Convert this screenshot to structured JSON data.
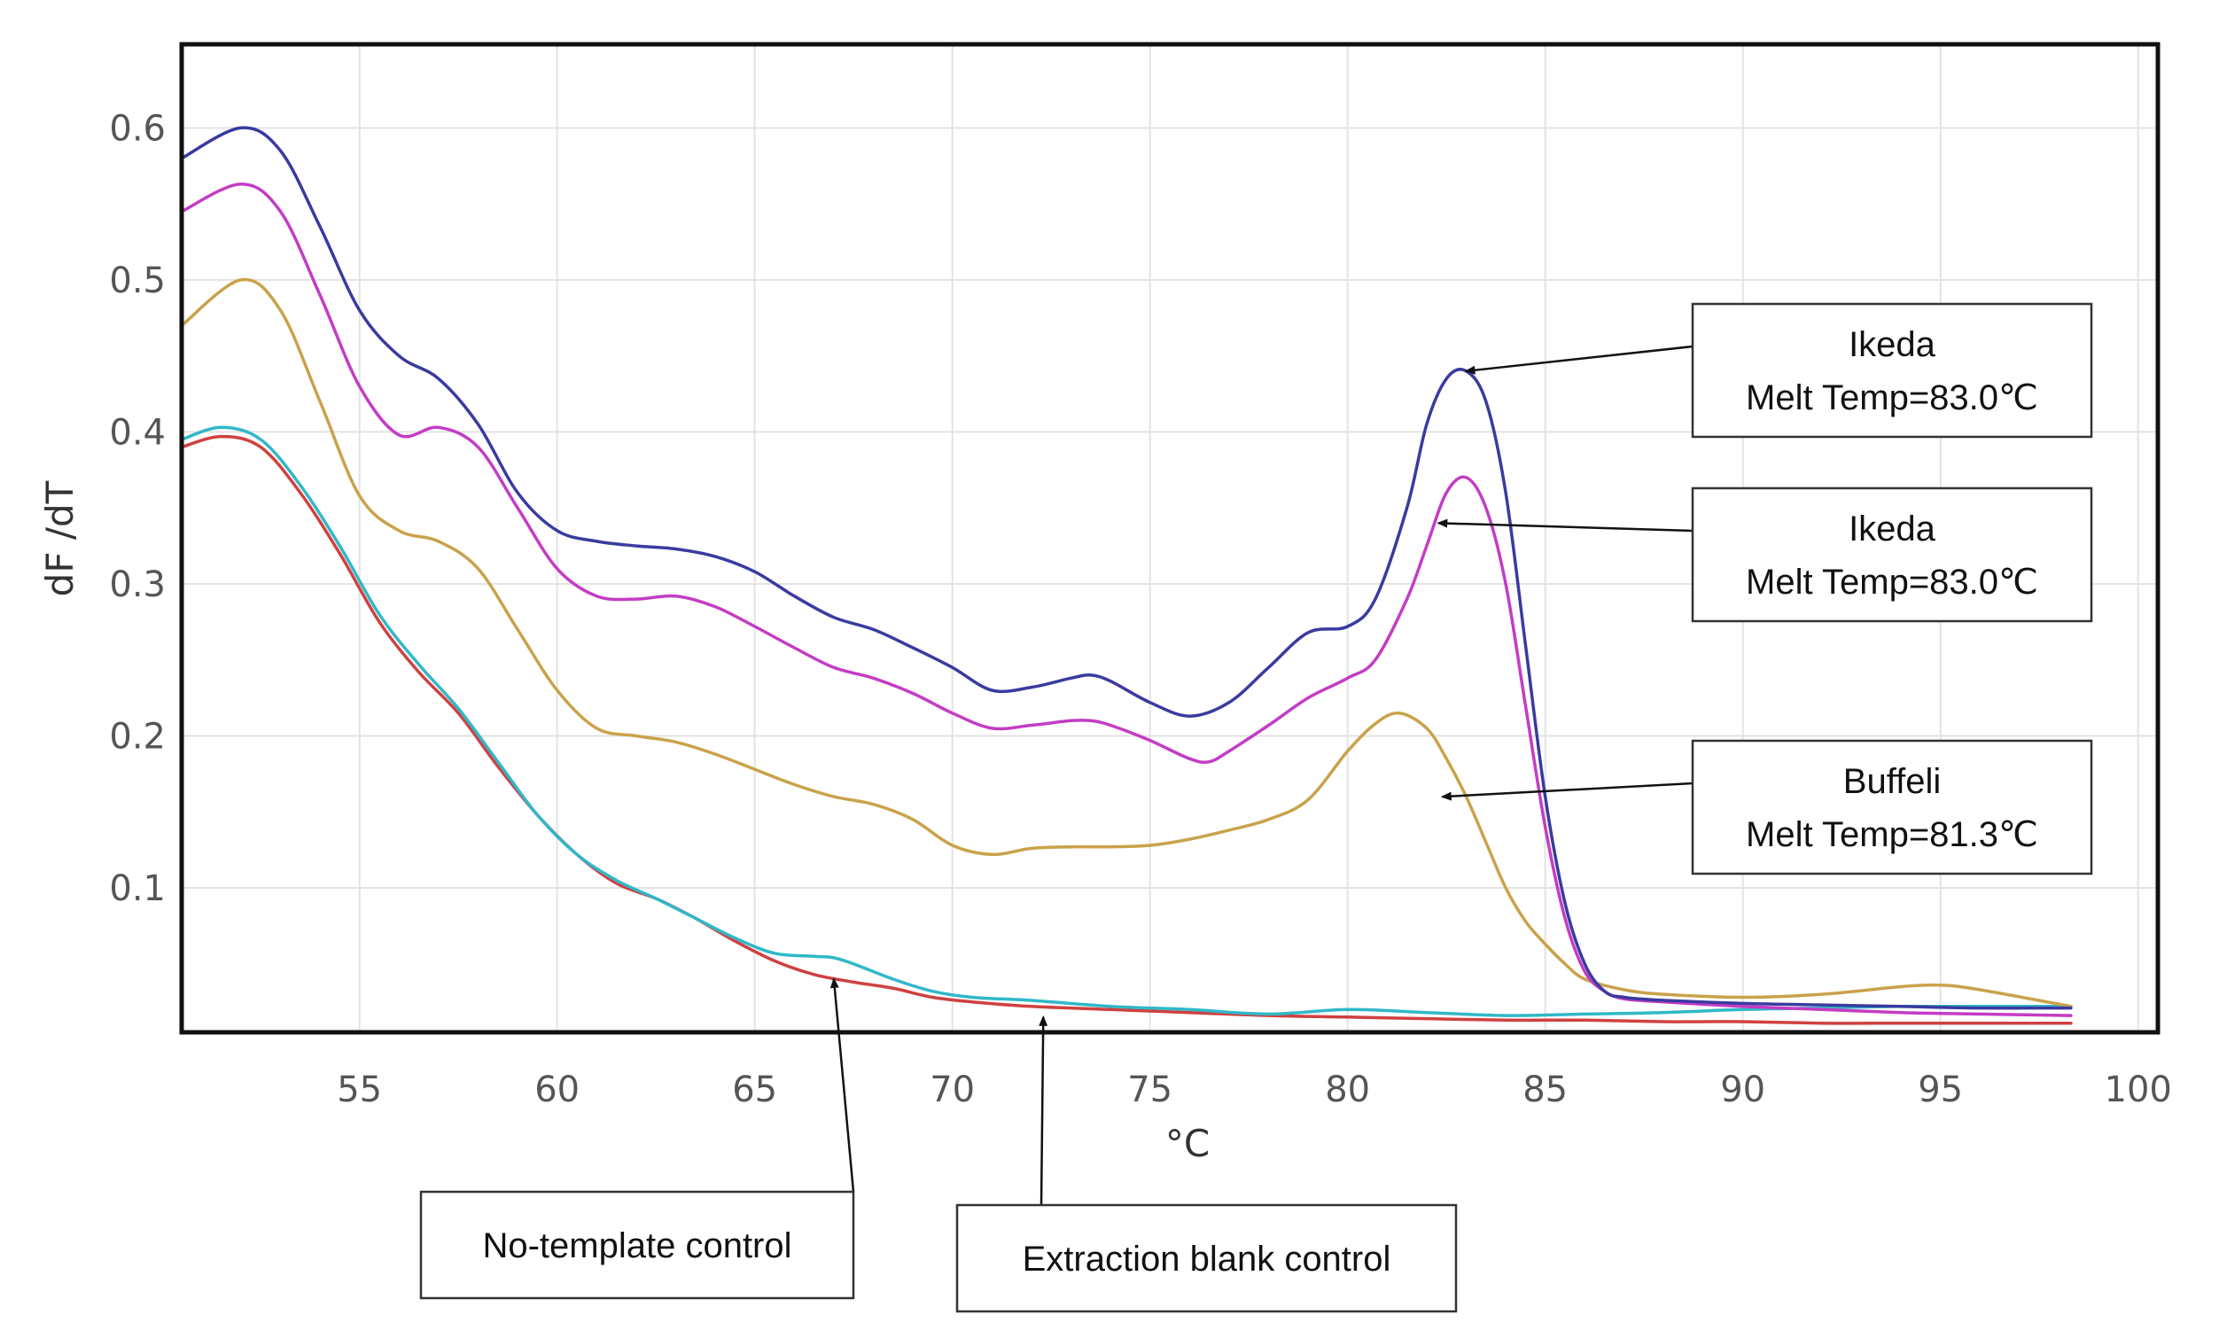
{
  "chart_data": {
    "type": "line",
    "xlabel": "°C",
    "ylabel": "dF /dT",
    "xlim": [
      50.5,
      100.5
    ],
    "ylim": [
      0.005,
      0.655
    ],
    "xticks": [
      55,
      60,
      65,
      70,
      75,
      80,
      85,
      90,
      95,
      100
    ],
    "yticks": [
      0.1,
      0.2,
      0.3,
      0.4,
      0.5,
      0.6
    ],
    "grid": true,
    "series": [
      {
        "name": "Ikeda (blue)",
        "color": "#3a3aa0",
        "x": [
          50.5,
          52,
          53,
          54,
          55,
          56,
          57,
          58,
          59,
          60,
          61,
          62,
          63,
          64,
          65,
          66,
          67,
          68,
          69,
          70,
          71,
          72,
          73,
          73.5,
          74,
          75,
          76,
          77,
          78,
          79,
          80,
          80.7,
          81.5,
          82,
          82.5,
          83,
          83.5,
          84,
          84.5,
          85,
          85.5,
          86,
          86.5,
          87,
          88,
          90,
          92,
          94,
          96,
          98.3
        ],
        "y": [
          0.58,
          0.6,
          0.585,
          0.535,
          0.48,
          0.45,
          0.435,
          0.405,
          0.36,
          0.335,
          0.328,
          0.325,
          0.323,
          0.318,
          0.308,
          0.292,
          0.278,
          0.27,
          0.258,
          0.245,
          0.23,
          0.232,
          0.238,
          0.24,
          0.236,
          0.222,
          0.213,
          0.222,
          0.245,
          0.268,
          0.272,
          0.29,
          0.35,
          0.405,
          0.435,
          0.44,
          0.42,
          0.36,
          0.26,
          0.16,
          0.09,
          0.05,
          0.032,
          0.028,
          0.026,
          0.024,
          0.023,
          0.022,
          0.021,
          0.021
        ]
      },
      {
        "name": "Ikeda (magenta)",
        "color": "#c43cc4",
        "x": [
          50.5,
          52,
          53,
          54,
          55,
          56,
          57,
          58,
          59,
          60,
          61,
          62,
          63,
          64,
          65,
          66,
          67,
          68,
          69,
          70,
          71,
          72,
          73,
          73.5,
          74,
          75,
          76,
          76.5,
          77,
          78,
          79,
          80,
          80.7,
          81.5,
          82,
          82.5,
          83,
          83.5,
          84,
          84.5,
          85,
          85.5,
          86,
          86.5,
          87,
          88,
          90,
          92,
          94,
          96,
          98.3
        ],
        "y": [
          0.545,
          0.563,
          0.545,
          0.49,
          0.43,
          0.398,
          0.403,
          0.39,
          0.35,
          0.31,
          0.292,
          0.29,
          0.292,
          0.285,
          0.272,
          0.258,
          0.245,
          0.238,
          0.228,
          0.215,
          0.205,
          0.207,
          0.21,
          0.21,
          0.207,
          0.197,
          0.185,
          0.183,
          0.19,
          0.207,
          0.225,
          0.238,
          0.25,
          0.29,
          0.325,
          0.36,
          0.37,
          0.35,
          0.3,
          0.22,
          0.14,
          0.08,
          0.045,
          0.032,
          0.027,
          0.025,
          0.022,
          0.02,
          0.018,
          0.017,
          0.016
        ]
      },
      {
        "name": "Buffeli",
        "color": "#c9a24a",
        "x": [
          50.5,
          52,
          53,
          54,
          55,
          56,
          57,
          58,
          59,
          60,
          61,
          62,
          63,
          64,
          65,
          66,
          67,
          68,
          69,
          70,
          71,
          72,
          73,
          74,
          75,
          76,
          77,
          78,
          79,
          80,
          80.7,
          81.3,
          82,
          82.5,
          83,
          83.5,
          84,
          84.5,
          85,
          85.5,
          86,
          87,
          88,
          90,
          92,
          94,
          95,
          96,
          98.3
        ],
        "y": [
          0.47,
          0.5,
          0.48,
          0.42,
          0.358,
          0.335,
          0.328,
          0.31,
          0.27,
          0.23,
          0.205,
          0.2,
          0.196,
          0.188,
          0.178,
          0.168,
          0.16,
          0.155,
          0.145,
          0.128,
          0.122,
          0.126,
          0.127,
          0.127,
          0.128,
          0.132,
          0.138,
          0.145,
          0.158,
          0.19,
          0.208,
          0.215,
          0.205,
          0.185,
          0.16,
          0.13,
          0.1,
          0.078,
          0.063,
          0.05,
          0.04,
          0.033,
          0.03,
          0.028,
          0.03,
          0.035,
          0.036,
          0.033,
          0.022
        ]
      },
      {
        "name": "No-template control",
        "color": "#d04040",
        "x": [
          50.5,
          51.5,
          52.5,
          53.5,
          54.5,
          55.5,
          56.5,
          57.5,
          58.5,
          59.5,
          60.5,
          61.5,
          62.5,
          63.5,
          64.5,
          65.5,
          66.5,
          67.5,
          68.5,
          69.5,
          70.5,
          72,
          74,
          76,
          78,
          80,
          82,
          84,
          86,
          88,
          90,
          92,
          94,
          96,
          98.3
        ],
        "y": [
          0.39,
          0.397,
          0.39,
          0.36,
          0.32,
          0.275,
          0.242,
          0.215,
          0.18,
          0.148,
          0.122,
          0.103,
          0.093,
          0.08,
          0.065,
          0.052,
          0.043,
          0.038,
          0.034,
          0.028,
          0.025,
          0.022,
          0.02,
          0.018,
          0.016,
          0.015,
          0.014,
          0.013,
          0.013,
          0.012,
          0.012,
          0.011,
          0.011,
          0.011,
          0.011
        ]
      },
      {
        "name": "Extraction blank control",
        "color": "#30b8c8",
        "x": [
          50.5,
          51.5,
          52.5,
          53.5,
          54.5,
          55.5,
          56.5,
          57.5,
          58.5,
          59.5,
          60.5,
          61.5,
          62.5,
          63.5,
          64.5,
          65.5,
          66.5,
          67,
          67.5,
          68.5,
          69.5,
          70.5,
          72,
          74,
          76,
          78,
          80,
          82,
          84,
          86,
          88,
          90,
          92,
          94,
          96,
          98.3
        ],
        "y": [
          0.395,
          0.403,
          0.395,
          0.365,
          0.325,
          0.28,
          0.247,
          0.218,
          0.183,
          0.148,
          0.122,
          0.105,
          0.093,
          0.08,
          0.067,
          0.057,
          0.055,
          0.054,
          0.05,
          0.04,
          0.032,
          0.028,
          0.026,
          0.022,
          0.02,
          0.017,
          0.02,
          0.018,
          0.016,
          0.017,
          0.018,
          0.02,
          0.021,
          0.022,
          0.022,
          0.022
        ]
      }
    ],
    "annotations": [
      {
        "name": "ikeda-blue",
        "lines": [
          "Ikeda",
          "Melt Temp=83.0℃"
        ],
        "target_x": 83.0,
        "target_y": 0.44
      },
      {
        "name": "ikeda-magenta",
        "lines": [
          "Ikeda",
          "Melt Temp=83.0℃"
        ],
        "target_x": 82.3,
        "target_y": 0.34
      },
      {
        "name": "buffeli",
        "lines": [
          "Buffeli",
          "Melt Temp=81.3℃"
        ],
        "target_x": 82.4,
        "target_y": 0.16
      },
      {
        "name": "no-template",
        "lines": [
          "No-template control"
        ],
        "target_x": 67.0,
        "target_y": 0.04
      },
      {
        "name": "extraction-blank",
        "lines": [
          "Extraction blank control"
        ],
        "target_x": 72.3,
        "target_y": 0.015
      }
    ]
  }
}
